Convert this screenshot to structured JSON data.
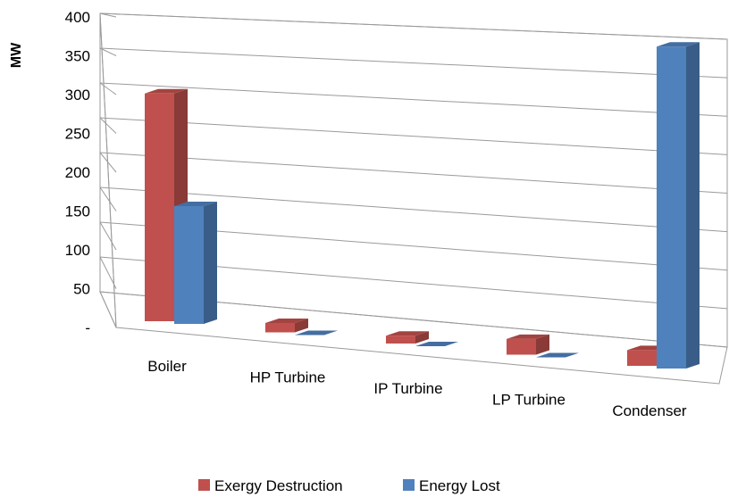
{
  "chart_data": {
    "type": "bar",
    "ylabel": "MW",
    "ylim": [
      0,
      400
    ],
    "yticks": [
      "-",
      "50",
      "100",
      "150",
      "200",
      "250",
      "300",
      "350",
      "400"
    ],
    "categories": [
      "Boiler",
      "HP Turbine",
      "IP Turbine",
      "LP Turbine",
      "Condenser"
    ],
    "series": [
      {
        "name": "Exergy Destruction",
        "color": "#c0504d",
        "values": [
          290,
          12,
          10,
          20,
          20
        ]
      },
      {
        "name": "Energy Lost",
        "color": "#4f81bd",
        "values": [
          150,
          0,
          0,
          0,
          410
        ]
      }
    ],
    "grid": true,
    "legend": "bottom"
  }
}
